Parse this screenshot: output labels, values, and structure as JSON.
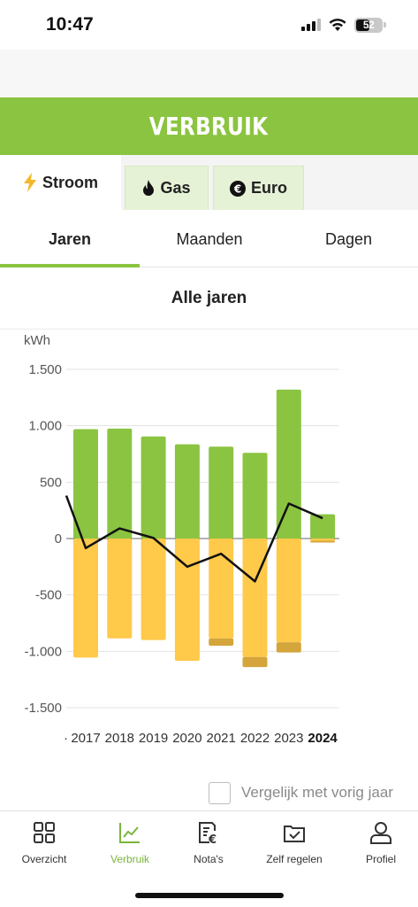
{
  "status": {
    "time": "10:47",
    "battery": "52"
  },
  "header": {
    "title": "VERBRUIK"
  },
  "energy_tabs": [
    {
      "label": "Stroom",
      "icon": "lightning-icon",
      "active": true
    },
    {
      "label": "Gas",
      "icon": "flame-icon",
      "active": false
    },
    {
      "label": "Euro",
      "icon": "euro-icon",
      "active": false
    }
  ],
  "period_tabs": [
    {
      "label": "Jaren",
      "active": true
    },
    {
      "label": "Maanden",
      "active": false
    },
    {
      "label": "Dagen",
      "active": false
    }
  ],
  "section_title": "Alle jaren",
  "chart_data": {
    "type": "bar",
    "ylabel": "kWh",
    "ylim": [
      -1500,
      1500
    ],
    "yticks": [
      "1.500",
      "1.000",
      "500",
      "0",
      "-500",
      "-1.000",
      "-1.500"
    ],
    "ytick_values": [
      1500,
      1000,
      500,
      0,
      -500,
      -1000,
      -1500
    ],
    "categories": [
      "2017",
      "2018",
      "2019",
      "2020",
      "2021",
      "2022",
      "2023",
      "2024"
    ],
    "highlighted_category": "2024",
    "grid": true,
    "series": [
      {
        "name": "",
        "kind": "bar",
        "color": "#8bc441",
        "values": [
          970,
          975,
          905,
          835,
          815,
          760,
          1320,
          215
        ]
      },
      {
        "name": "",
        "kind": "bar",
        "color": "#ffc94a",
        "values": [
          -1055,
          -885,
          -900,
          -1085,
          -885,
          -1050,
          -920,
          -20
        ]
      },
      {
        "name": "",
        "kind": "bar",
        "color": "#d4a53a",
        "values": [
          0,
          0,
          0,
          0,
          -65,
          -90,
          -90,
          -15
        ]
      },
      {
        "name": "",
        "kind": "line",
        "color": "#111111",
        "values": [
          -85,
          90,
          5,
          -250,
          -135,
          -380,
          310,
          180
        ],
        "prev_value": 380
      }
    ]
  },
  "compare": {
    "label": "Vergelijk met vorig jaar",
    "checked": false
  },
  "nav": [
    {
      "label": "Overzicht",
      "icon": "grid-icon",
      "active": false
    },
    {
      "label": "Verbruik",
      "icon": "chart-icon",
      "active": true
    },
    {
      "label": "Nota's",
      "icon": "invoice-icon",
      "active": false
    },
    {
      "label": "Zelf regelen",
      "icon": "settings-box-icon",
      "active": false
    },
    {
      "label": "Profiel",
      "icon": "user-icon",
      "active": false
    }
  ],
  "colors": {
    "accent": "#8bc441",
    "inactive_tab": "#e6f2d6"
  }
}
